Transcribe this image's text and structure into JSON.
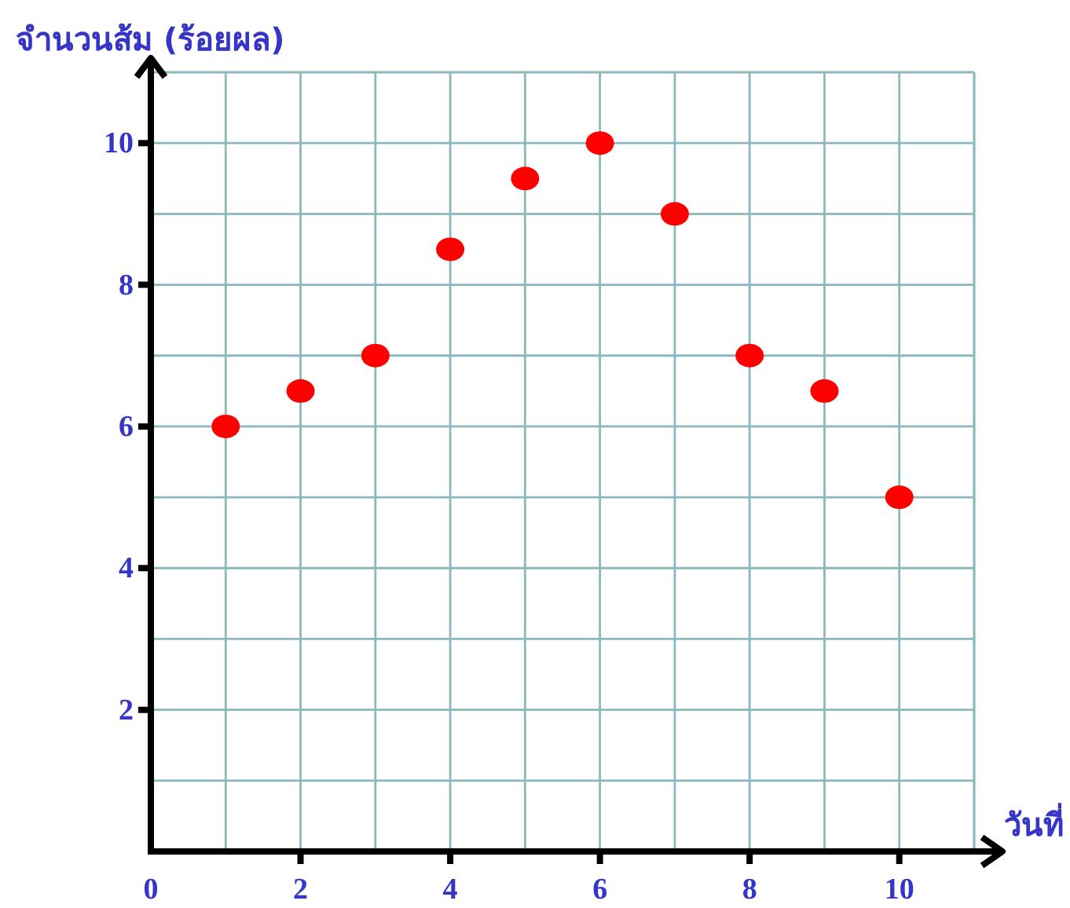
{
  "chart_data": {
    "type": "scatter",
    "xlabel": "วันที่",
    "ylabel": "จำนวนส้ม (ร้อยผล)",
    "x": [
      1,
      2,
      3,
      4,
      5,
      6,
      7,
      8,
      9,
      10
    ],
    "series": [
      {
        "color": "#ff0000",
        "values": [
          6,
          6.5,
          7,
          8.5,
          9.5,
          10,
          9,
          7,
          6.5,
          5
        ]
      }
    ],
    "xlim": [
      0,
      11
    ],
    "ylim": [
      0,
      11
    ],
    "xticks": [
      0,
      {
        "value": 1,
        "label": null
      },
      2,
      {
        "value": 3,
        "label": null
      },
      4,
      {
        "value": 5,
        "label": null
      },
      6,
      {
        "value": 7,
        "label": null
      },
      8,
      {
        "value": 9,
        "label": null
      },
      10
    ],
    "yticks": [
      {
        "value": 1,
        "label": null
      },
      2,
      {
        "value": 3,
        "label": null
      },
      4,
      {
        "value": 5,
        "label": null
      },
      6,
      {
        "value": 7,
        "label": null
      },
      8,
      {
        "value": 9,
        "label": null
      },
      10
    ],
    "grid": true,
    "marker": "circle"
  }
}
